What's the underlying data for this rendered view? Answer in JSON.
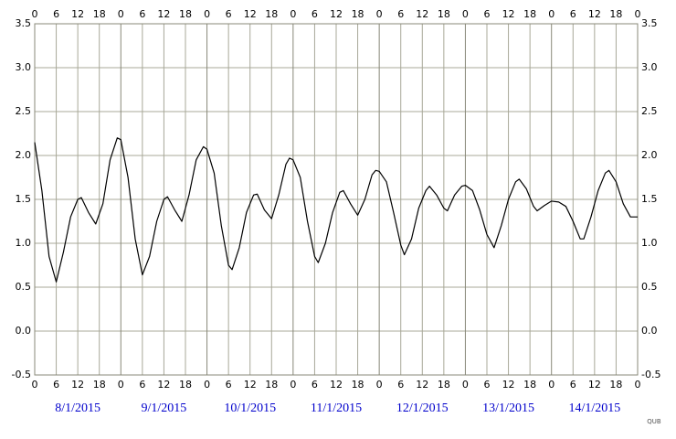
{
  "chart_data": {
    "type": "line",
    "x": [
      0,
      2,
      4,
      6,
      8,
      10,
      12,
      13,
      15,
      17,
      19,
      21,
      23,
      24,
      26,
      28,
      30,
      32,
      34,
      36,
      37,
      39,
      41,
      43,
      45,
      47,
      48,
      50,
      52,
      54,
      55,
      57,
      59,
      61,
      62,
      64,
      66,
      68,
      70,
      71,
      72,
      74,
      76,
      78,
      79,
      81,
      83,
      85,
      86,
      88,
      90,
      92,
      94,
      95,
      96,
      98,
      100,
      102,
      103,
      105,
      107,
      109,
      110,
      112,
      114,
      115,
      117,
      119,
      120,
      122,
      124,
      126,
      128,
      130,
      132,
      134,
      135,
      137,
      139,
      140,
      142,
      144,
      146,
      148,
      150,
      152,
      153,
      155,
      157,
      159,
      160,
      162,
      164,
      166,
      168
    ],
    "series": [
      {
        "color": "#000000",
        "values": [
          2.15,
          1.6,
          0.85,
          0.56,
          0.9,
          1.3,
          1.5,
          1.52,
          1.35,
          1.22,
          1.45,
          1.95,
          2.2,
          2.18,
          1.75,
          1.05,
          0.64,
          0.85,
          1.25,
          1.5,
          1.53,
          1.38,
          1.25,
          1.55,
          1.95,
          2.1,
          2.07,
          1.8,
          1.2,
          0.75,
          0.7,
          0.95,
          1.35,
          1.55,
          1.56,
          1.38,
          1.28,
          1.55,
          1.9,
          1.97,
          1.95,
          1.75,
          1.25,
          0.85,
          0.78,
          1.0,
          1.35,
          1.58,
          1.6,
          1.45,
          1.32,
          1.5,
          1.78,
          1.83,
          1.82,
          1.7,
          1.35,
          0.98,
          0.87,
          1.05,
          1.4,
          1.6,
          1.65,
          1.55,
          1.4,
          1.37,
          1.55,
          1.65,
          1.66,
          1.6,
          1.38,
          1.1,
          0.95,
          1.2,
          1.5,
          1.7,
          1.73,
          1.62,
          1.42,
          1.37,
          1.43,
          1.48,
          1.47,
          1.42,
          1.25,
          1.05,
          1.05,
          1.3,
          1.6,
          1.8,
          1.83,
          1.7,
          1.45,
          1.3,
          1.3
        ]
      }
    ],
    "xlim": [
      0,
      168
    ],
    "xticks": [
      0,
      6,
      12,
      18,
      {
        "value": 24,
        "label": "0"
      },
      {
        "value": 30,
        "label": "6"
      },
      {
        "value": 36,
        "label": "12"
      },
      {
        "value": 42,
        "label": "18"
      },
      {
        "value": 48,
        "label": "0"
      },
      {
        "value": 54,
        "label": "6"
      },
      {
        "value": 60,
        "label": "12"
      },
      {
        "value": 66,
        "label": "18"
      },
      {
        "value": 72,
        "label": "0"
      },
      {
        "value": 78,
        "label": "6"
      },
      {
        "value": 84,
        "label": "12"
      },
      {
        "value": 90,
        "label": "18"
      },
      {
        "value": 96,
        "label": "0"
      },
      {
        "value": 102,
        "label": "6"
      },
      {
        "value": 108,
        "label": "12"
      },
      {
        "value": 114,
        "label": "18"
      },
      {
        "value": 120,
        "label": "0"
      },
      {
        "value": 126,
        "label": "6"
      },
      {
        "value": 132,
        "label": "12"
      },
      {
        "value": 138,
        "label": "18"
      },
      {
        "value": 144,
        "label": "0"
      },
      {
        "value": 150,
        "label": "6"
      },
      {
        "value": 156,
        "label": "12"
      },
      {
        "value": 162,
        "label": "18"
      },
      {
        "value": 168,
        "label": "0"
      }
    ],
    "ylim": [
      -0.5,
      3.5
    ],
    "yticks": [
      -0.5,
      {
        "value": 0,
        "label": "0.0"
      },
      0.5,
      {
        "value": 1,
        "label": "1.0"
      },
      1.5,
      {
        "value": 2,
        "label": "2.0"
      },
      2.5,
      {
        "value": 3,
        "label": "3.0"
      },
      3.5
    ],
    "dates": [
      "8/1/2015",
      "9/1/2015",
      "10/1/2015",
      "11/1/2015",
      "12/1/2015",
      "13/1/2015",
      "14/1/2015"
    ],
    "credit": "QUB",
    "grid": true
  }
}
